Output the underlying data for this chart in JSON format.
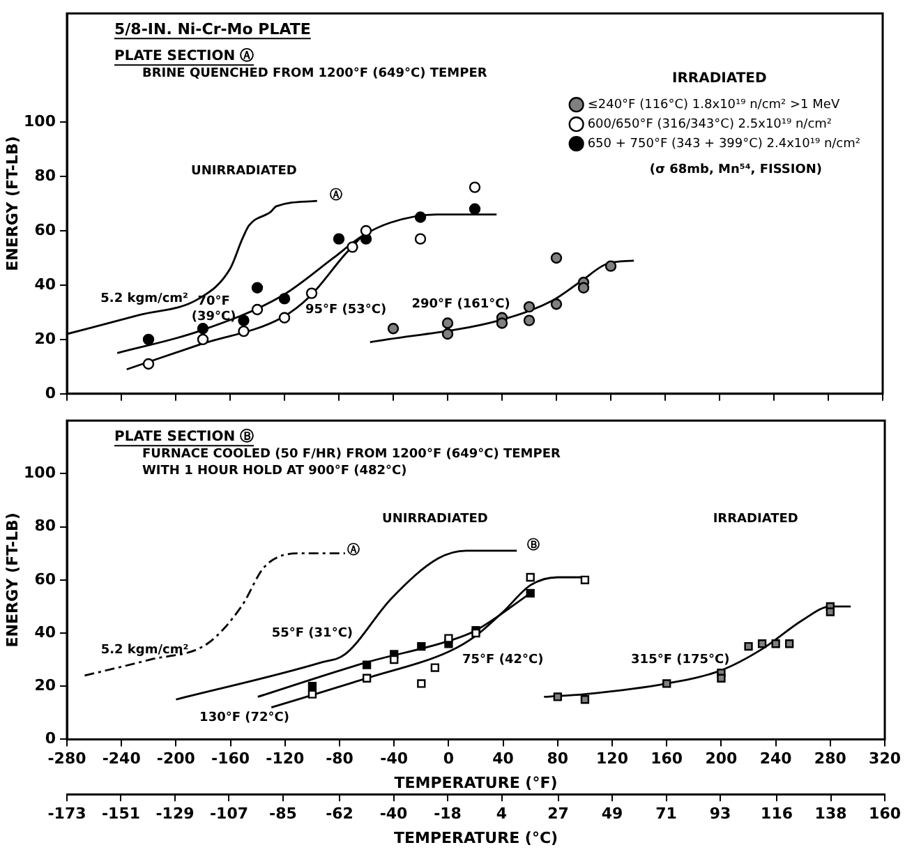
{
  "chart_data": [
    {
      "type": "scatter",
      "title": "5/8-IN. Ni-Cr-Mo PLATE",
      "subtitle": "PLATE SECTION Ⓐ",
      "ylabel": "ENERGY (FT-LB)",
      "legend_title": "IRRADIATED",
      "legend": "top right",
      "tick_labels": "y",
      "xlim": [
        -280,
        320
      ],
      "xticks": [
        -280,
        -240,
        -200,
        -160,
        -120,
        -80,
        -40,
        0,
        40,
        80,
        120,
        160,
        200,
        240,
        280,
        320
      ],
      "ylim": [
        0,
        140
      ],
      "yticks": [
        0,
        20,
        40,
        60,
        80,
        100
      ],
      "series": [
        {
          "name": "≤240°F (116°C) 1.8x10¹⁹ n/cm² >1 MeV",
          "marker": "circle",
          "color": "#808080",
          "x": [
            -40,
            0,
            0,
            40,
            40,
            60,
            60,
            80,
            80,
            100,
            100,
            120
          ],
          "values": [
            24,
            26,
            22,
            28,
            26,
            27,
            32,
            50,
            33,
            41,
            39,
            47
          ]
        },
        {
          "name": "600/650°F (316/343°C) 2.5x10¹⁹ n/cm²",
          "marker": "circle",
          "color": "#ffffff",
          "x": [
            -220,
            -180,
            -150,
            -140,
            -120,
            -100,
            -70,
            -60,
            -20,
            20
          ],
          "values": [
            11,
            20,
            23,
            31,
            28,
            37,
            54,
            60,
            57,
            76
          ]
        },
        {
          "name": "650 + 750°F (343 + 399°C) 2.4x10¹⁹ n/cm²",
          "marker": "circle",
          "color": "#000000",
          "x": [
            -220,
            -180,
            -150,
            -140,
            -120,
            -80,
            -60,
            -20,
            20
          ],
          "values": [
            20,
            24,
            27,
            39,
            35,
            57,
            57,
            65,
            68
          ]
        },
        {
          "type": "line",
          "color": "#000000",
          "line_style": "solid",
          "x": [
            -280,
            -227,
            -183,
            -160,
            -151,
            -146,
            -130,
            -126,
            -96
          ],
          "values": [
            22,
            29,
            35,
            46,
            57,
            62,
            67,
            69,
            71
          ]
        },
        {
          "type": "line",
          "color": "#000000",
          "line_style": "solid",
          "x": [
            -243,
            -183,
            -122,
            -84,
            -63,
            -42,
            -8,
            36
          ],
          "values": [
            15,
            23,
            36,
            50,
            58,
            63,
            66,
            66
          ]
        },
        {
          "type": "line",
          "color": "#000000",
          "line_style": "solid",
          "x": [
            -236,
            -183,
            -122,
            -101,
            -76,
            -63
          ],
          "values": [
            9,
            18,
            28,
            36,
            51,
            58
          ]
        },
        {
          "type": "line",
          "color": "#000000",
          "line_style": "solid",
          "x": [
            -57,
            38,
            76,
            97,
            118,
            137
          ],
          "values": [
            19,
            27,
            34,
            41,
            48,
            49
          ]
        }
      ],
      "annotations": [
        "BRINE QUENCHED FROM 1200°F (649°C) TEMPER",
        "UNIRRADIATED",
        "Ⓐ",
        "5.2 kgm/cm²",
        "70°F (39°C)",
        "95°F (53°C)",
        "290°F (161°C)",
        "(σ 68mb, Mn⁵⁴, FISSION)"
      ]
    },
    {
      "type": "scatter",
      "subtitle": "PLATE SECTION Ⓑ",
      "xlabel": "TEMPERATURE (°F)",
      "ylabel": "ENERGY (FT-LB)",
      "x2label": "TEMPERATURE (°C)",
      "xlim": [
        -280,
        320
      ],
      "xticks": [
        -280,
        -240,
        -200,
        -160,
        -120,
        -80,
        -40,
        0,
        40,
        80,
        120,
        160,
        200,
        240,
        280,
        320
      ],
      "x2lim": [
        -173,
        160
      ],
      "x2ticks": [
        -173,
        -151,
        -129,
        -107,
        -85,
        -62,
        -40,
        -18,
        4,
        27,
        49,
        71,
        93,
        116,
        138,
        160
      ],
      "ylim": [
        0,
        120
      ],
      "yticks": [
        0,
        20,
        40,
        60,
        80,
        100
      ],
      "series": [
        {
          "marker": "square",
          "color": "#808080",
          "x": [
            80,
            100,
            160,
            200,
            200,
            220,
            230,
            240,
            250,
            280,
            280
          ],
          "values": [
            16,
            15,
            21,
            25,
            23,
            35,
            36,
            36,
            36,
            50,
            48
          ]
        },
        {
          "marker": "square",
          "color": "#ffffff",
          "x": [
            -100,
            -60,
            -40,
            -20,
            -10,
            0,
            20,
            60,
            100
          ],
          "values": [
            17,
            23,
            30,
            21,
            27,
            38,
            40,
            61,
            60
          ]
        },
        {
          "marker": "square",
          "color": "#000000",
          "x": [
            -100,
            -60,
            -40,
            -20,
            0,
            20,
            60
          ],
          "values": [
            20,
            28,
            32,
            35,
            36,
            41,
            55
          ]
        },
        {
          "type": "line",
          "color": "#000000",
          "line_style": "solid",
          "x": [
            -200,
            -93,
            -76,
            -42,
            -8,
            13,
            50
          ],
          "values": [
            15,
            29,
            32,
            53,
            68,
            71,
            71
          ]
        },
        {
          "type": "line",
          "color": "#000000",
          "line_style": "dashed",
          "x": [
            -267,
            -219,
            -177,
            -152,
            -135,
            -109,
            -76
          ],
          "values": [
            24,
            30,
            36,
            50,
            65,
            70,
            70
          ]
        },
        {
          "type": "line",
          "color": "#000000",
          "line_style": "solid",
          "x": [
            -140,
            -60,
            0,
            20,
            60
          ],
          "values": [
            16,
            29,
            37,
            41,
            55
          ]
        },
        {
          "type": "line",
          "color": "#000000",
          "line_style": "solid",
          "x": [
            -130,
            -60,
            0,
            20,
            40,
            60,
            80,
            100
          ],
          "values": [
            12,
            23,
            33,
            39,
            48,
            58,
            61,
            61
          ]
        },
        {
          "type": "line",
          "color": "#000000",
          "line_style": "solid",
          "x": [
            70,
            100,
            160,
            200,
            230,
            260,
            280,
            295
          ],
          "values": [
            16,
            17,
            21,
            26,
            34,
            45,
            50,
            50
          ]
        }
      ],
      "annotations": [
        "FURNACE COOLED (50 F/HR) FROM 1200°F (649°C) TEMPER",
        "WITH 1 HOUR HOLD AT 900°F (482°C)",
        "UNIRRADIATED",
        "IRRADIATED",
        "Ⓑ",
        "Ⓐ",
        "5.2 kgm/cm²",
        "55°F (31°C)",
        "75°F (42°C)",
        "315°F (175°C)",
        "130°F (72°C)"
      ]
    }
  ]
}
